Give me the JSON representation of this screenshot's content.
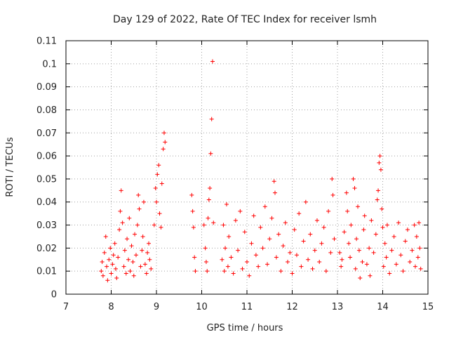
{
  "chart_data": {
    "type": "scatter",
    "title": "Day 129 of 2022, Rate Of TEC Index for receiver lsmh",
    "xlabel": "GPS time / hours",
    "ylabel": "ROTI / TECUs",
    "xlim": [
      7,
      15
    ],
    "ylim": [
      0,
      0.11
    ],
    "xticks": [
      "7",
      "8",
      "9",
      "10",
      "11",
      "12",
      "13",
      "14",
      "15"
    ],
    "yticks": [
      "0",
      "0.01",
      "0.02",
      "0.03",
      "0.04",
      "0.05",
      "0.06",
      "0.07",
      "0.08",
      "0.09",
      "0.1",
      "0.11"
    ],
    "grid": true,
    "marker": "plus",
    "color": "#ff0000",
    "series": [
      {
        "points": [
          [
            7.78,
            0.01
          ],
          [
            7.8,
            0.014
          ],
          [
            7.82,
            0.008
          ],
          [
            7.85,
            0.018
          ],
          [
            7.88,
            0.025
          ],
          [
            7.9,
            0.012
          ],
          [
            7.92,
            0.006
          ],
          [
            7.95,
            0.015
          ],
          [
            7.98,
            0.02
          ],
          [
            8.0,
            0.009
          ],
          [
            8.03,
            0.013
          ],
          [
            8.05,
            0.017
          ],
          [
            8.08,
            0.022
          ],
          [
            8.1,
            0.011
          ],
          [
            8.12,
            0.007
          ],
          [
            8.15,
            0.016
          ],
          [
            8.18,
            0.028
          ],
          [
            8.2,
            0.036
          ],
          [
            8.22,
            0.045
          ],
          [
            8.25,
            0.031
          ],
          [
            8.28,
            0.012
          ],
          [
            8.3,
            0.019
          ],
          [
            8.33,
            0.009
          ],
          [
            8.35,
            0.024
          ],
          [
            8.38,
            0.015
          ],
          [
            8.4,
            0.033
          ],
          [
            8.42,
            0.01
          ],
          [
            8.45,
            0.021
          ],
          [
            8.48,
            0.014
          ],
          [
            8.5,
            0.008
          ],
          [
            8.52,
            0.026
          ],
          [
            8.55,
            0.017
          ],
          [
            8.58,
            0.03
          ],
          [
            8.6,
            0.043
          ],
          [
            8.62,
            0.037
          ],
          [
            8.65,
            0.012
          ],
          [
            8.68,
            0.019
          ],
          [
            8.7,
            0.025
          ],
          [
            8.72,
            0.04
          ],
          [
            8.75,
            0.013
          ],
          [
            8.78,
            0.009
          ],
          [
            8.8,
            0.018
          ],
          [
            8.83,
            0.022
          ],
          [
            8.85,
            0.015
          ],
          [
            8.88,
            0.011
          ],
          [
            8.95,
            0.03
          ],
          [
            8.98,
            0.046
          ],
          [
            9.0,
            0.04
          ],
          [
            9.02,
            0.052
          ],
          [
            9.05,
            0.056
          ],
          [
            9.07,
            0.035
          ],
          [
            9.1,
            0.029
          ],
          [
            9.12,
            0.048
          ],
          [
            9.15,
            0.063
          ],
          [
            9.17,
            0.07
          ],
          [
            9.19,
            0.066
          ],
          [
            9.78,
            0.043
          ],
          [
            9.8,
            0.036
          ],
          [
            9.82,
            0.029
          ],
          [
            9.84,
            0.016
          ],
          [
            9.86,
            0.01
          ],
          [
            10.05,
            0.03
          ],
          [
            10.08,
            0.02
          ],
          [
            10.1,
            0.014
          ],
          [
            10.12,
            0.01
          ],
          [
            10.14,
            0.033
          ],
          [
            10.16,
            0.041
          ],
          [
            10.18,
            0.046
          ],
          [
            10.2,
            0.061
          ],
          [
            10.22,
            0.076
          ],
          [
            10.24,
            0.101
          ],
          [
            10.26,
            0.031
          ],
          [
            10.45,
            0.015
          ],
          [
            10.48,
            0.03
          ],
          [
            10.5,
            0.01
          ],
          [
            10.52,
            0.02
          ],
          [
            10.55,
            0.039
          ],
          [
            10.58,
            0.012
          ],
          [
            10.6,
            0.025
          ],
          [
            10.65,
            0.016
          ],
          [
            10.7,
            0.009
          ],
          [
            10.75,
            0.032
          ],
          [
            10.8,
            0.019
          ],
          [
            10.85,
            0.036
          ],
          [
            10.9,
            0.011
          ],
          [
            10.95,
            0.027
          ],
          [
            11.0,
            0.014
          ],
          [
            11.05,
            0.008
          ],
          [
            11.1,
            0.022
          ],
          [
            11.15,
            0.034
          ],
          [
            11.2,
            0.017
          ],
          [
            11.25,
            0.012
          ],
          [
            11.3,
            0.029
          ],
          [
            11.35,
            0.02
          ],
          [
            11.4,
            0.038
          ],
          [
            11.45,
            0.013
          ],
          [
            11.5,
            0.024
          ],
          [
            11.55,
            0.033
          ],
          [
            11.6,
            0.049
          ],
          [
            11.62,
            0.044
          ],
          [
            11.65,
            0.016
          ],
          [
            11.7,
            0.026
          ],
          [
            11.75,
            0.01
          ],
          [
            11.8,
            0.021
          ],
          [
            11.85,
            0.031
          ],
          [
            11.9,
            0.014
          ],
          [
            11.95,
            0.018
          ],
          [
            12.0,
            0.009
          ],
          [
            12.05,
            0.028
          ],
          [
            12.1,
            0.017
          ],
          [
            12.15,
            0.035
          ],
          [
            12.2,
            0.012
          ],
          [
            12.25,
            0.023
          ],
          [
            12.3,
            0.04
          ],
          [
            12.35,
            0.015
          ],
          [
            12.4,
            0.026
          ],
          [
            12.45,
            0.011
          ],
          [
            12.5,
            0.019
          ],
          [
            12.55,
            0.032
          ],
          [
            12.6,
            0.014
          ],
          [
            12.65,
            0.022
          ],
          [
            12.7,
            0.029
          ],
          [
            12.75,
            0.01
          ],
          [
            12.8,
            0.036
          ],
          [
            12.85,
            0.018
          ],
          [
            12.88,
            0.05
          ],
          [
            12.9,
            0.043
          ],
          [
            12.93,
            0.024
          ],
          [
            13.05,
            0.018
          ],
          [
            13.08,
            0.012
          ],
          [
            13.1,
            0.015
          ],
          [
            13.15,
            0.027
          ],
          [
            13.2,
            0.044
          ],
          [
            13.22,
            0.036
          ],
          [
            13.25,
            0.022
          ],
          [
            13.28,
            0.016
          ],
          [
            13.3,
            0.03
          ],
          [
            13.35,
            0.05
          ],
          [
            13.38,
            0.046
          ],
          [
            13.4,
            0.011
          ],
          [
            13.42,
            0.024
          ],
          [
            13.45,
            0.038
          ],
          [
            13.48,
            0.019
          ],
          [
            13.5,
            0.007
          ],
          [
            13.55,
            0.014
          ],
          [
            13.58,
            0.028
          ],
          [
            13.6,
            0.034
          ],
          [
            13.65,
            0.013
          ],
          [
            13.7,
            0.02
          ],
          [
            13.72,
            0.008
          ],
          [
            13.75,
            0.032
          ],
          [
            13.8,
            0.018
          ],
          [
            13.85,
            0.026
          ],
          [
            13.88,
            0.041
          ],
          [
            13.9,
            0.045
          ],
          [
            13.92,
            0.057
          ],
          [
            13.94,
            0.06
          ],
          [
            13.96,
            0.054
          ],
          [
            13.98,
            0.037
          ],
          [
            14.0,
            0.029
          ],
          [
            14.02,
            0.012
          ],
          [
            14.05,
            0.022
          ],
          [
            14.08,
            0.016
          ],
          [
            14.1,
            0.03
          ],
          [
            14.15,
            0.009
          ],
          [
            14.2,
            0.019
          ],
          [
            14.25,
            0.025
          ],
          [
            14.3,
            0.013
          ],
          [
            14.35,
            0.031
          ],
          [
            14.4,
            0.017
          ],
          [
            14.45,
            0.01
          ],
          [
            14.5,
            0.023
          ],
          [
            14.55,
            0.028
          ],
          [
            14.6,
            0.014
          ],
          [
            14.65,
            0.019
          ],
          [
            14.7,
            0.03
          ],
          [
            14.72,
            0.012
          ],
          [
            14.75,
            0.025
          ],
          [
            14.78,
            0.016
          ],
          [
            14.8,
            0.031
          ],
          [
            14.82,
            0.02
          ],
          [
            14.84,
            0.011
          ]
        ]
      }
    ]
  }
}
